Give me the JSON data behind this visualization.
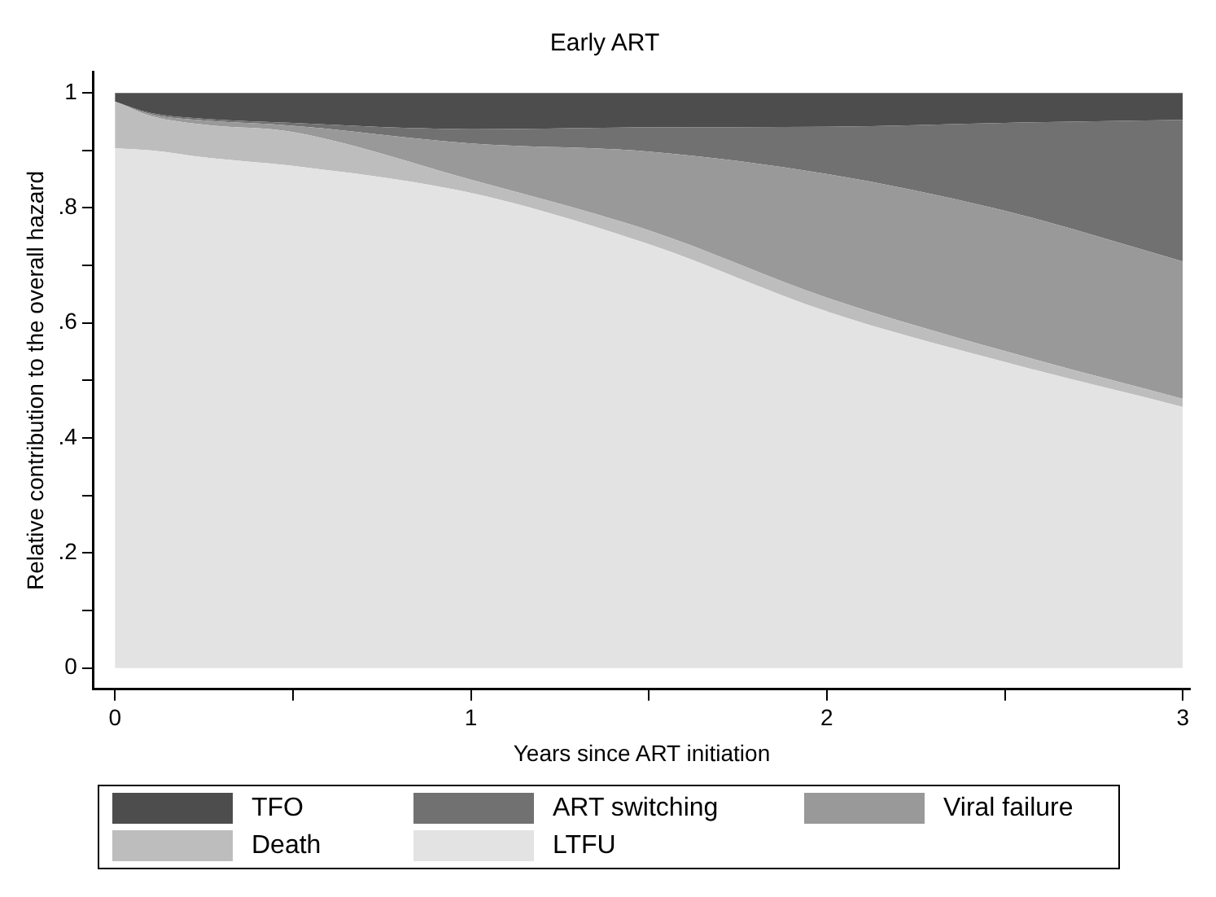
{
  "chart_data": {
    "type": "area",
    "title": "Early ART",
    "xlabel": "Years since ART initiation",
    "ylabel": "Relative contribution to the overall hazard",
    "stacked": true,
    "legend": "bottom",
    "x": [
      0,
      0.1,
      0.25,
      0.5,
      1,
      1.5,
      2,
      2.5,
      3
    ],
    "series": [
      {
        "name": "LTFU",
        "color": "#e3e3e3",
        "values": [
          0.904,
          0.9,
          0.888,
          0.873,
          0.826,
          0.737,
          0.62,
          0.532,
          0.454
        ]
      },
      {
        "name": "Death",
        "color": "#bdbdbd",
        "values": [
          0.081,
          0.06,
          0.057,
          0.059,
          0.023,
          0.024,
          0.024,
          0.019,
          0.014
        ]
      },
      {
        "name": "Viral failure",
        "color": "#999999",
        "values": [
          0,
          0.003,
          0.007,
          0.011,
          0.063,
          0.137,
          0.215,
          0.244,
          0.239
        ]
      },
      {
        "name": "ART switching",
        "color": "#717171",
        "values": [
          0,
          0.002,
          0.003,
          0.005,
          0.025,
          0.042,
          0.082,
          0.153,
          0.246
        ]
      },
      {
        "name": "TFO",
        "color": "#4d4d4d",
        "values": [
          0.015,
          0.035,
          0.045,
          0.052,
          0.063,
          0.06,
          0.059,
          0.052,
          0.047
        ]
      }
    ],
    "xlim": [
      -0.06,
      3.02
    ],
    "xticks": [
      0,
      {
        "value": 0.5,
        "label": null
      },
      1,
      {
        "value": 1.5,
        "label": null
      },
      2,
      {
        "value": 2.5,
        "label": null
      },
      3
    ],
    "ylim": [
      -0.037,
      1.037
    ],
    "yticks": [
      0,
      {
        "value": 0.1,
        "label": null
      },
      {
        "value": 0.2,
        "label": ".2"
      },
      {
        "value": 0.3,
        "label": null
      },
      {
        "value": 0.4,
        "label": ".4"
      },
      {
        "value": 0.5,
        "label": null
      },
      {
        "value": 0.6,
        "label": ".6"
      },
      {
        "value": 0.7,
        "label": null
      },
      {
        "value": 0.8,
        "label": ".8"
      },
      {
        "value": 0.9,
        "label": null
      },
      1
    ]
  }
}
